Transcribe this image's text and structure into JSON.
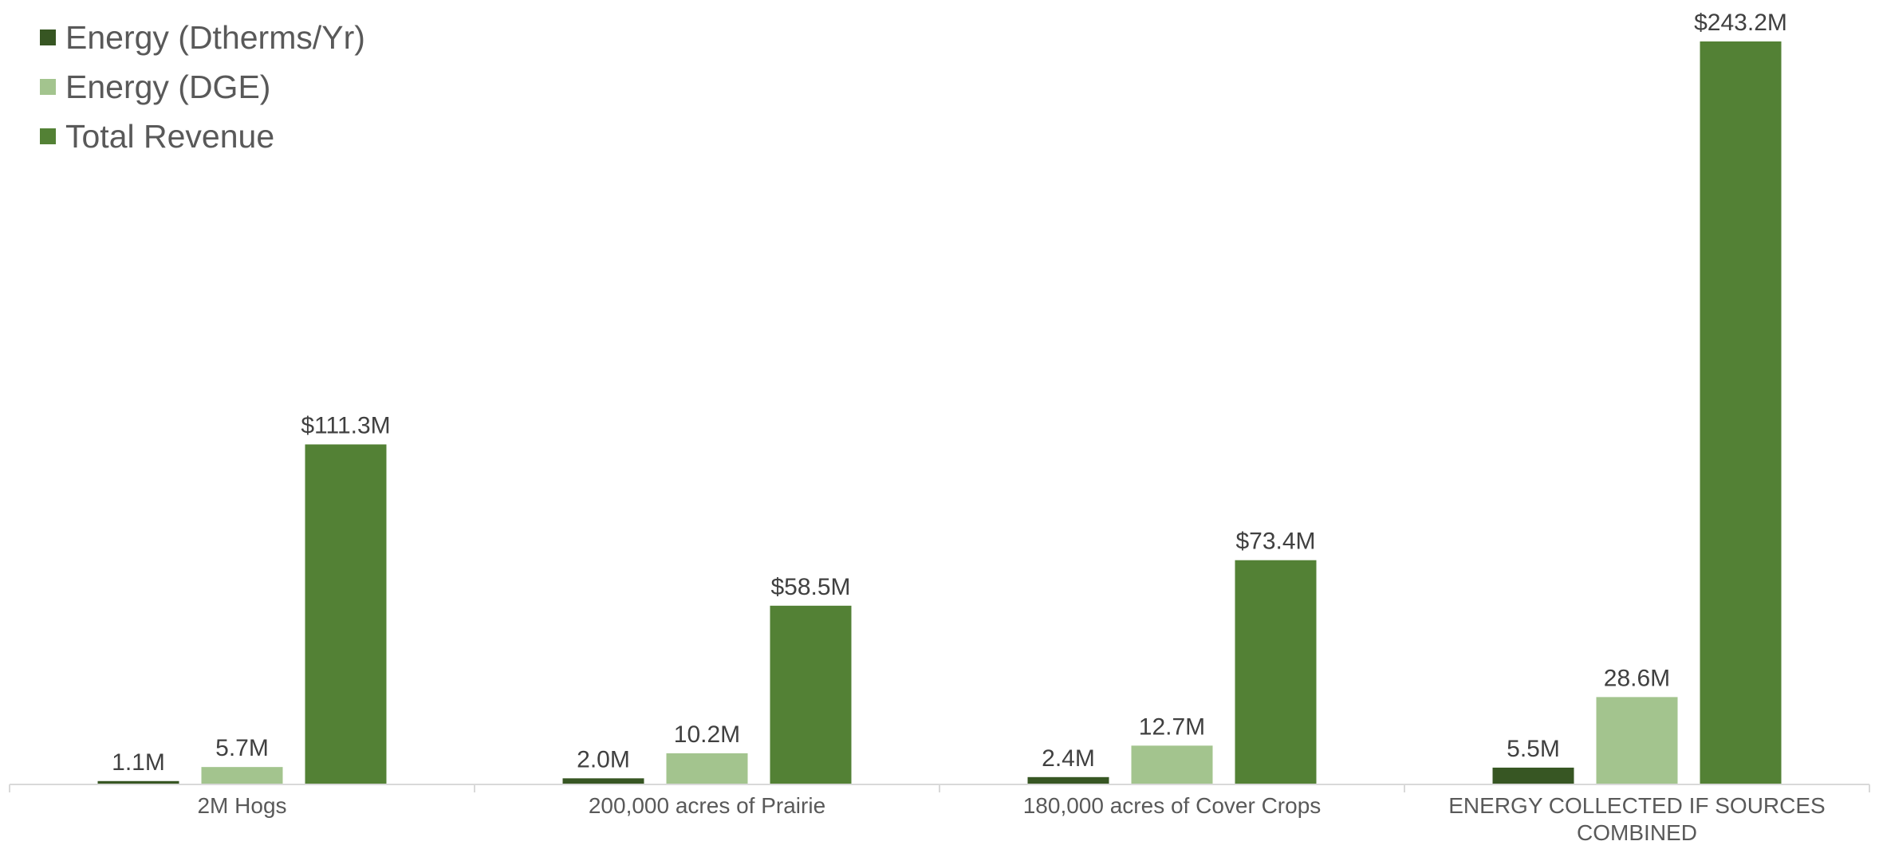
{
  "chart_data": {
    "type": "bar",
    "title": "",
    "xlabel": "",
    "ylabel": "",
    "grid": false,
    "legend_position": "top-left",
    "categories": [
      "2M Hogs",
      "200,000 acres of Prairie",
      "180,000 acres of Cover Crops",
      "ENERGY COLLECTED IF SOURCES COMBINED"
    ],
    "series": [
      {
        "name": "Energy (Dtherms/Yr)",
        "color": "#375623",
        "values": [
          1.1,
          2.0,
          2.4,
          5.5
        ],
        "labels": [
          "1.1M",
          "2.0M",
          "2.4M",
          "5.5M"
        ]
      },
      {
        "name": "Energy (DGE)",
        "color": "#A3C48E",
        "values": [
          5.7,
          10.2,
          12.7,
          28.6
        ],
        "labels": [
          "5.7M",
          "10.2M",
          "12.7M",
          "28.6M"
        ]
      },
      {
        "name": "Total Revenue",
        "color": "#538135",
        "values": [
          111.3,
          58.5,
          73.4,
          243.2
        ],
        "labels": [
          "$111.3M",
          "$58.5M",
          "$73.4M",
          "$243.2M"
        ]
      }
    ],
    "ylim": [
      0,
      243.2
    ],
    "axis_color": "#D9D9D9"
  }
}
